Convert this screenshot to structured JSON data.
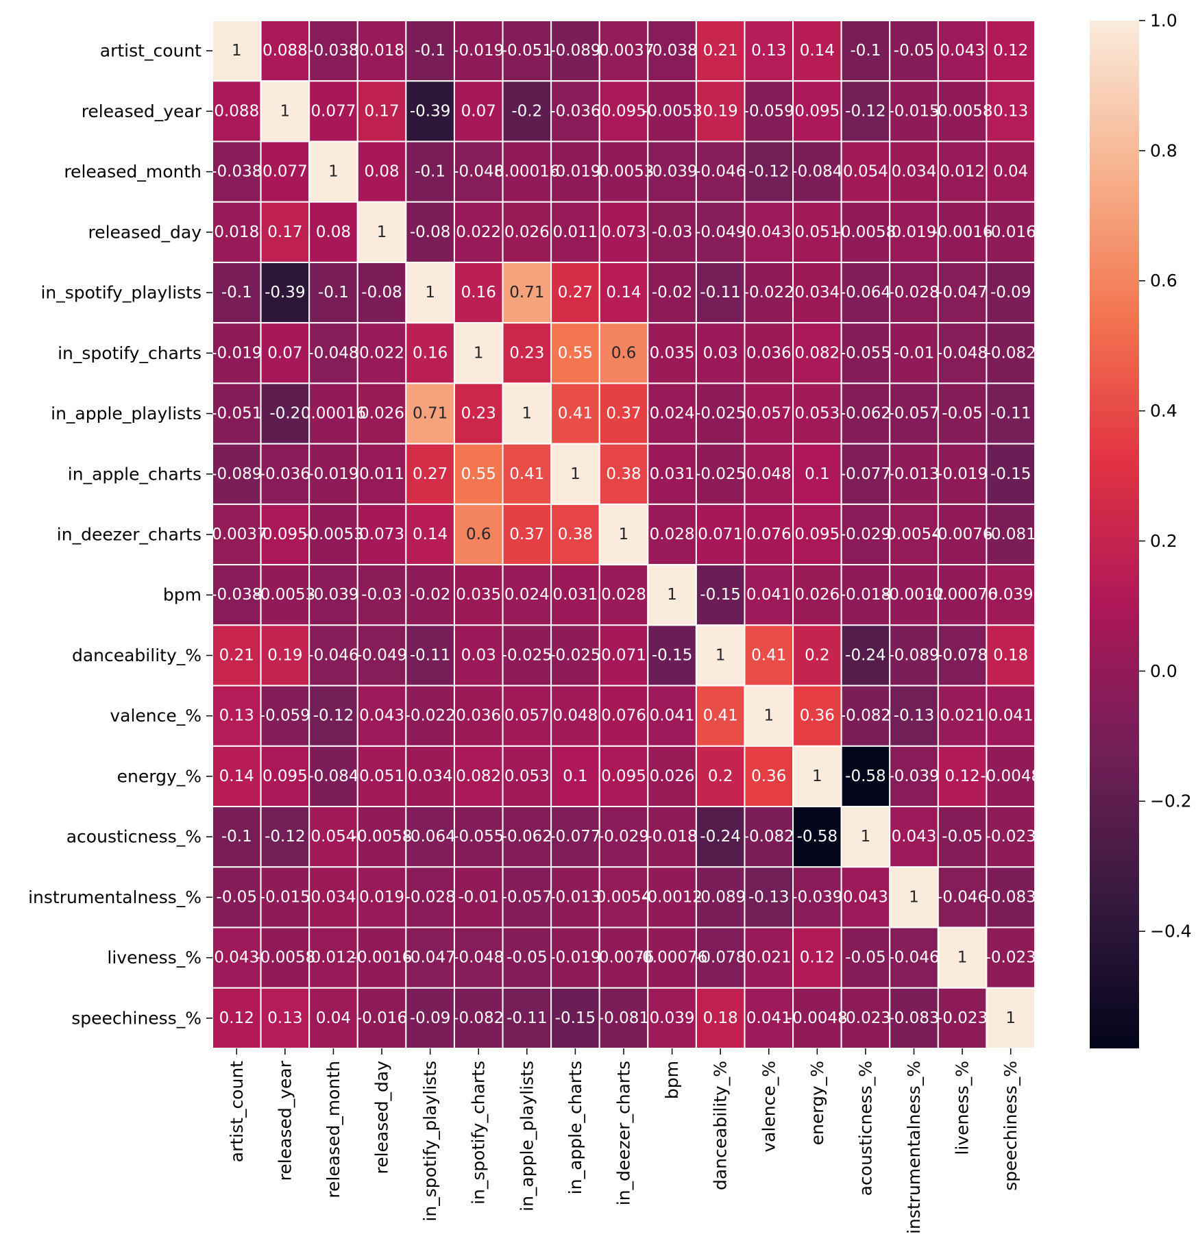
{
  "chart_data": {
    "type": "heatmap",
    "title": "",
    "xlabel": "",
    "ylabel": "",
    "variables": [
      "artist_count",
      "released_year",
      "released_month",
      "released_day",
      "in_spotify_playlists",
      "in_spotify_charts",
      "in_apple_playlists",
      "in_apple_charts",
      "in_deezer_charts",
      "bpm",
      "danceability_%",
      "valence_%",
      "energy_%",
      "acousticness_%",
      "instrumentalness_%",
      "liveness_%",
      "speechiness_%"
    ],
    "values": [
      [
        1,
        0.088,
        -0.038,
        0.018,
        -0.1,
        -0.019,
        -0.051,
        -0.089,
        -0.0037,
        -0.038,
        0.21,
        0.13,
        0.14,
        -0.1,
        -0.05,
        0.043,
        0.12
      ],
      [
        0.088,
        1,
        0.077,
        0.17,
        -0.39,
        0.07,
        -0.2,
        -0.036,
        0.095,
        -0.0053,
        0.19,
        -0.059,
        0.095,
        -0.12,
        -0.015,
        -0.0058,
        0.13
      ],
      [
        -0.038,
        0.077,
        1,
        0.08,
        -0.1,
        -0.048,
        0.00016,
        -0.019,
        -0.0053,
        -0.039,
        -0.046,
        -0.12,
        -0.084,
        0.054,
        0.034,
        0.012,
        0.04
      ],
      [
        0.018,
        0.17,
        0.08,
        1,
        -0.08,
        0.022,
        0.026,
        0.011,
        0.073,
        -0.03,
        -0.049,
        0.043,
        0.051,
        -0.0058,
        0.019,
        -0.0016,
        -0.016
      ],
      [
        -0.1,
        -0.39,
        -0.1,
        -0.08,
        1,
        0.16,
        0.71,
        0.27,
        0.14,
        -0.02,
        -0.11,
        -0.022,
        0.034,
        -0.064,
        -0.028,
        -0.047,
        -0.09
      ],
      [
        -0.019,
        0.07,
        -0.048,
        0.022,
        0.16,
        1,
        0.23,
        0.55,
        0.6,
        0.035,
        0.03,
        0.036,
        0.082,
        -0.055,
        -0.01,
        -0.048,
        -0.082
      ],
      [
        -0.051,
        -0.2,
        0.00016,
        0.026,
        0.71,
        0.23,
        1,
        0.41,
        0.37,
        0.024,
        -0.025,
        0.057,
        0.053,
        -0.062,
        -0.057,
        -0.05,
        -0.11
      ],
      [
        -0.089,
        -0.036,
        -0.019,
        0.011,
        0.27,
        0.55,
        0.41,
        1,
        0.38,
        0.031,
        -0.025,
        0.048,
        0.1,
        -0.077,
        -0.013,
        -0.019,
        -0.15
      ],
      [
        -0.0037,
        0.095,
        -0.0053,
        0.073,
        0.14,
        0.6,
        0.37,
        0.38,
        1,
        0.028,
        0.071,
        0.076,
        0.095,
        -0.029,
        0.0054,
        -0.0076,
        -0.081
      ],
      [
        -0.038,
        -0.0053,
        -0.039,
        -0.03,
        -0.02,
        0.035,
        0.024,
        0.031,
        0.028,
        1,
        -0.15,
        0.041,
        0.026,
        -0.018,
        -0.0012,
        -0.00076,
        0.039
      ],
      [
        0.21,
        0.19,
        -0.046,
        -0.049,
        -0.11,
        0.03,
        -0.025,
        -0.025,
        0.071,
        -0.15,
        1,
        0.41,
        0.2,
        -0.24,
        -0.089,
        -0.078,
        0.18
      ],
      [
        0.13,
        -0.059,
        -0.12,
        0.043,
        -0.022,
        0.036,
        0.057,
        0.048,
        0.076,
        0.041,
        0.41,
        1,
        0.36,
        -0.082,
        -0.13,
        0.021,
        0.041
      ],
      [
        0.14,
        0.095,
        -0.084,
        0.051,
        0.034,
        0.082,
        0.053,
        0.1,
        0.095,
        0.026,
        0.2,
        0.36,
        1,
        -0.58,
        -0.039,
        0.12,
        -0.0048
      ],
      [
        -0.1,
        -0.12,
        0.054,
        -0.0058,
        -0.064,
        -0.055,
        -0.062,
        -0.077,
        -0.029,
        -0.018,
        -0.24,
        -0.082,
        -0.58,
        1,
        0.043,
        -0.05,
        -0.023
      ],
      [
        -0.05,
        -0.015,
        0.034,
        0.019,
        -0.028,
        -0.01,
        -0.057,
        -0.013,
        0.0054,
        -0.0012,
        -0.089,
        -0.13,
        -0.039,
        0.043,
        1,
        -0.046,
        -0.083
      ],
      [
        0.043,
        -0.0058,
        0.012,
        -0.0016,
        -0.047,
        -0.048,
        -0.05,
        -0.019,
        -0.0076,
        -0.00076,
        -0.078,
        0.021,
        0.12,
        -0.05,
        -0.046,
        1,
        -0.023
      ],
      [
        0.12,
        0.13,
        0.04,
        -0.016,
        -0.09,
        -0.082,
        -0.11,
        -0.15,
        -0.081,
        0.039,
        0.18,
        0.041,
        -0.0048,
        -0.023,
        -0.083,
        -0.023,
        1
      ]
    ],
    "annotations": [
      [
        "1",
        "0.088",
        "-0.038",
        "0.018",
        "-0.1",
        "-0.019",
        "-0.051",
        "-0.089",
        "-0.0037",
        "-0.038",
        "0.21",
        "0.13",
        "0.14",
        "-0.1",
        "-0.05",
        "0.043",
        "0.12"
      ],
      [
        "0.088",
        "1",
        "0.077",
        "0.17",
        "-0.39",
        "0.07",
        "-0.2",
        "-0.036",
        "0.095",
        "-0.0053",
        "0.19",
        "-0.059",
        "0.095",
        "-0.12",
        "-0.015",
        "-0.0058",
        "0.13"
      ],
      [
        "-0.038",
        "0.077",
        "1",
        "0.08",
        "-0.1",
        "-0.048",
        "0.00016",
        "-0.019",
        "-0.0053",
        "-0.039",
        "-0.046",
        "-0.12",
        "-0.084",
        "0.054",
        "0.034",
        "0.012",
        "0.04"
      ],
      [
        "0.018",
        "0.17",
        "0.08",
        "1",
        "-0.08",
        "0.022",
        "0.026",
        "0.011",
        "0.073",
        "-0.03",
        "-0.049",
        "0.043",
        "0.051",
        "-0.0058",
        "0.019",
        "-0.0016",
        "-0.016"
      ],
      [
        "-0.1",
        "-0.39",
        "-0.1",
        "-0.08",
        "1",
        "0.16",
        "0.71",
        "0.27",
        "0.14",
        "-0.02",
        "-0.11",
        "-0.022",
        "0.034",
        "-0.064",
        "-0.028",
        "-0.047",
        "-0.09"
      ],
      [
        "-0.019",
        "0.07",
        "-0.048",
        "0.022",
        "0.16",
        "1",
        "0.23",
        "0.55",
        "0.6",
        "0.035",
        "0.03",
        "0.036",
        "0.082",
        "-0.055",
        "-0.01",
        "-0.048",
        "-0.082"
      ],
      [
        "-0.051",
        "-0.2",
        "0.00016",
        "0.026",
        "0.71",
        "0.23",
        "1",
        "0.41",
        "0.37",
        "0.024",
        "-0.025",
        "0.057",
        "0.053",
        "-0.062",
        "-0.057",
        "-0.05",
        "-0.11"
      ],
      [
        "-0.089",
        "-0.036",
        "-0.019",
        "0.011",
        "0.27",
        "0.55",
        "0.41",
        "1",
        "0.38",
        "0.031",
        "-0.025",
        "0.048",
        "0.1",
        "-0.077",
        "-0.013",
        "-0.019",
        "-0.15"
      ],
      [
        "-0.0037",
        "0.095",
        "-0.0053",
        "0.073",
        "0.14",
        "0.6",
        "0.37",
        "0.38",
        "1",
        "0.028",
        "0.071",
        "0.076",
        "0.095",
        "-0.029",
        "0.0054",
        "-0.0076",
        "-0.081"
      ],
      [
        "-0.038",
        "-0.0053",
        "-0.039",
        "-0.03",
        "-0.02",
        "0.035",
        "0.024",
        "0.031",
        "0.028",
        "1",
        "-0.15",
        "0.041",
        "0.026",
        "-0.018",
        "-0.0012",
        "-0.00076",
        "0.039"
      ],
      [
        "0.21",
        "0.19",
        "-0.046",
        "-0.049",
        "-0.11",
        "0.03",
        "-0.025",
        "-0.025",
        "0.071",
        "-0.15",
        "1",
        "0.41",
        "0.2",
        "-0.24",
        "-0.089",
        "-0.078",
        "0.18"
      ],
      [
        "0.13",
        "-0.059",
        "-0.12",
        "0.043",
        "-0.022",
        "0.036",
        "0.057",
        "0.048",
        "0.076",
        "0.041",
        "0.41",
        "1",
        "0.36",
        "-0.082",
        "-0.13",
        "0.021",
        "0.041"
      ],
      [
        "0.14",
        "0.095",
        "-0.084",
        "0.051",
        "0.034",
        "0.082",
        "0.053",
        "0.1",
        "0.095",
        "0.026",
        "0.2",
        "0.36",
        "1",
        "-0.58",
        "-0.039",
        "0.12",
        "-0.0048"
      ],
      [
        "-0.1",
        "-0.12",
        "0.054",
        "-0.0058",
        "-0.064",
        "-0.055",
        "-0.062",
        "-0.077",
        "-0.029",
        "-0.018",
        "-0.24",
        "-0.082",
        "-0.58",
        "1",
        "0.043",
        "-0.05",
        "-0.023"
      ],
      [
        "-0.05",
        "-0.015",
        "0.034",
        "0.019",
        "-0.028",
        "-0.01",
        "-0.057",
        "-0.013",
        "0.0054",
        "-0.0012",
        "-0.089",
        "-0.13",
        "-0.039",
        "0.043",
        "1",
        "-0.046",
        "-0.083"
      ],
      [
        "0.043",
        "-0.0058",
        "0.012",
        "-0.0016",
        "-0.047",
        "-0.048",
        "-0.05",
        "-0.019",
        "-0.0076",
        "-0.00076",
        "-0.078",
        "0.021",
        "0.12",
        "-0.05",
        "-0.046",
        "1",
        "-0.023"
      ],
      [
        "0.12",
        "0.13",
        "0.04",
        "-0.016",
        "-0.09",
        "-0.082",
        "-0.11",
        "-0.15",
        "-0.081",
        "0.039",
        "0.18",
        "0.041",
        "-0.0048",
        "-0.023",
        "-0.083",
        "-0.023",
        "1"
      ]
    ],
    "colorbar": {
      "vmin": -0.58,
      "vmax": 1.0,
      "ticks": [
        1.0,
        0.8,
        0.6,
        0.4,
        0.2,
        0.0,
        -0.2,
        -0.4
      ],
      "tick_labels": [
        "1.0",
        "0.8",
        "0.6",
        "0.4",
        "0.2",
        "0.0",
        "−0.2",
        "−0.4"
      ],
      "colormap": "rocket",
      "color_stops": [
        "#03051a",
        "#35193e",
        "#701f57",
        "#ad1759",
        "#e13342",
        "#f37651",
        "#f6b48f",
        "#faebdd"
      ]
    },
    "cell_border_color": "#ffffff",
    "grid": false,
    "legend": "colorbar-right"
  }
}
